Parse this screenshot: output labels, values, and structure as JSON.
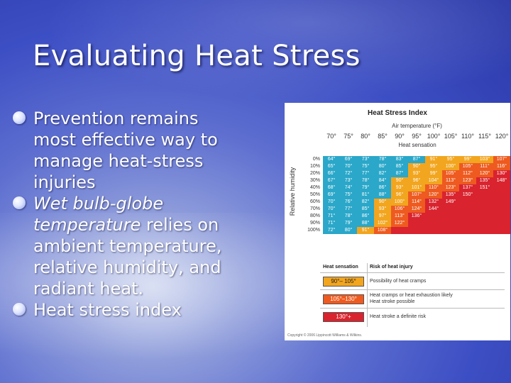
{
  "slide": {
    "title": "Evaluating Heat Stress",
    "bullets": {
      "b1": "Prevention remains most effective way to manage heat-stress injuries",
      "b2_italic": "Wet bulb-globe temperature",
      "b2_rest": " relies on ambient temperature, relative humidity, and radiant heat.",
      "b3": "Heat stress index"
    }
  },
  "figure": {
    "title": "Heat Stress Index",
    "air_temp_label": "Air temperature (°F)",
    "heat_sensation_label": "Heat sensation",
    "rh_axis_label": "Relative humidity",
    "air_temps": [
      "70°",
      "75°",
      "80°",
      "85°",
      "90°",
      "95°",
      "100°",
      "105°",
      "110°",
      "115°",
      "120°"
    ],
    "humidities": [
      "0%",
      "10%",
      "20%",
      "30%",
      "40%",
      "50%",
      "60%",
      "70%",
      "80%",
      "90%",
      "100%"
    ],
    "index_rows": [
      [
        "64°",
        "69°",
        "73°",
        "78°",
        "83°",
        "87°",
        "91°",
        "95°",
        "99°",
        "103°",
        "107°"
      ],
      [
        "65°",
        "70°",
        "75°",
        "80°",
        "85°",
        "90°",
        "95°",
        "100°",
        "105°",
        "111°",
        "116°"
      ],
      [
        "66°",
        "72°",
        "77°",
        "82°",
        "87°",
        "93°",
        "99°",
        "105°",
        "112°",
        "120°",
        "130°"
      ],
      [
        "67°",
        "73°",
        "78°",
        "84°",
        "90°",
        "96°",
        "104°",
        "113°",
        "123°",
        "135°",
        "148°"
      ],
      [
        "68°",
        "74°",
        "79°",
        "86°",
        "93°",
        "101°",
        "110°",
        "123°",
        "137°",
        "151°",
        ""
      ],
      [
        "69°",
        "75°",
        "81°",
        "88°",
        "96°",
        "107°",
        "120°",
        "135°",
        "150°",
        "",
        ""
      ],
      [
        "70°",
        "76°",
        "82°",
        "90°",
        "100°",
        "114°",
        "132°",
        "149°",
        "",
        "",
        ""
      ],
      [
        "70°",
        "77°",
        "85°",
        "93°",
        "106°",
        "124°",
        "144°",
        "",
        "",
        "",
        ""
      ],
      [
        "71°",
        "78°",
        "86°",
        "97°",
        "113°",
        "136°",
        "",
        "",
        "",
        "",
        ""
      ],
      [
        "71°",
        "79°",
        "88°",
        "102°",
        "122°",
        "",
        "",
        "",
        "",
        "",
        ""
      ],
      [
        "72°",
        "80°",
        "91°",
        "108°",
        "",
        "",
        "",
        "",
        "",
        "",
        ""
      ]
    ],
    "colors": {
      "low": "#2aa7c9",
      "caution": "#f2a51e",
      "warning": "#ee5a1f",
      "danger": "#d9232e"
    },
    "legend": {
      "header_sensation": "Heat sensation",
      "header_risk": "Risk of heat injury",
      "rows": [
        {
          "range": "90°– 105°",
          "risk": "Possibility of heat cramps"
        },
        {
          "range": "105°–130°",
          "risk": "Heat cramps or heat exhaustion likely\nHeat stroke possible"
        },
        {
          "range": "130°+",
          "risk": "Heat stroke a definite risk"
        }
      ]
    },
    "copyright": "Copyright © 2006 Lippincott Williams & Wilkins."
  }
}
